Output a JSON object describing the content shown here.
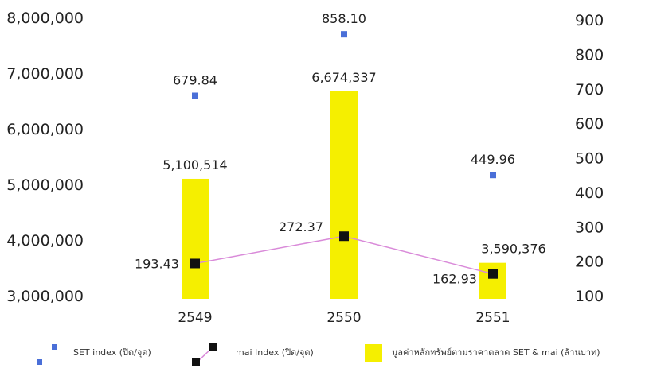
{
  "chart_data": {
    "type": "bar",
    "categories": [
      "2549",
      "2550",
      "2551"
    ],
    "y_left": {
      "ticks": [
        "3,000,000",
        "4,000,000",
        "5,000,000",
        "6,000,000",
        "7,000,000",
        "8,000,000"
      ],
      "range": [
        3000000,
        8000000
      ]
    },
    "y_right": {
      "ticks": [
        "100",
        "200",
        "300",
        "400",
        "500",
        "600",
        "700",
        "800",
        "900"
      ],
      "range": [
        100,
        900
      ]
    },
    "series": [
      {
        "name": "มูลค่าหลักทรัพย์ตามราคาตลาด SET & mai (ล้านบาท)",
        "kind": "bar",
        "axis": "left",
        "values": [
          5100514,
          6674337,
          3590376
        ],
        "labels": [
          "5,100,514",
          "6,674,337",
          "3,590,376"
        ],
        "color": "#f5ef00"
      },
      {
        "name": "SET index (ปิด/จุด)",
        "kind": "scatter",
        "axis": "right",
        "values": [
          679.84,
          858.1,
          449.96
        ],
        "labels": [
          "679.84",
          "858.10",
          "449.96"
        ],
        "color": "#4a6fd8"
      },
      {
        "name": "mai Index (ปิด/จุด)",
        "kind": "line",
        "axis": "right",
        "values": [
          193.43,
          272.37,
          162.93
        ],
        "labels": [
          "193.43",
          "272.37",
          "162.93"
        ],
        "color": "#111111",
        "line_color": "#d98ad9"
      }
    ],
    "legend_position": "bottom",
    "grid": false
  }
}
